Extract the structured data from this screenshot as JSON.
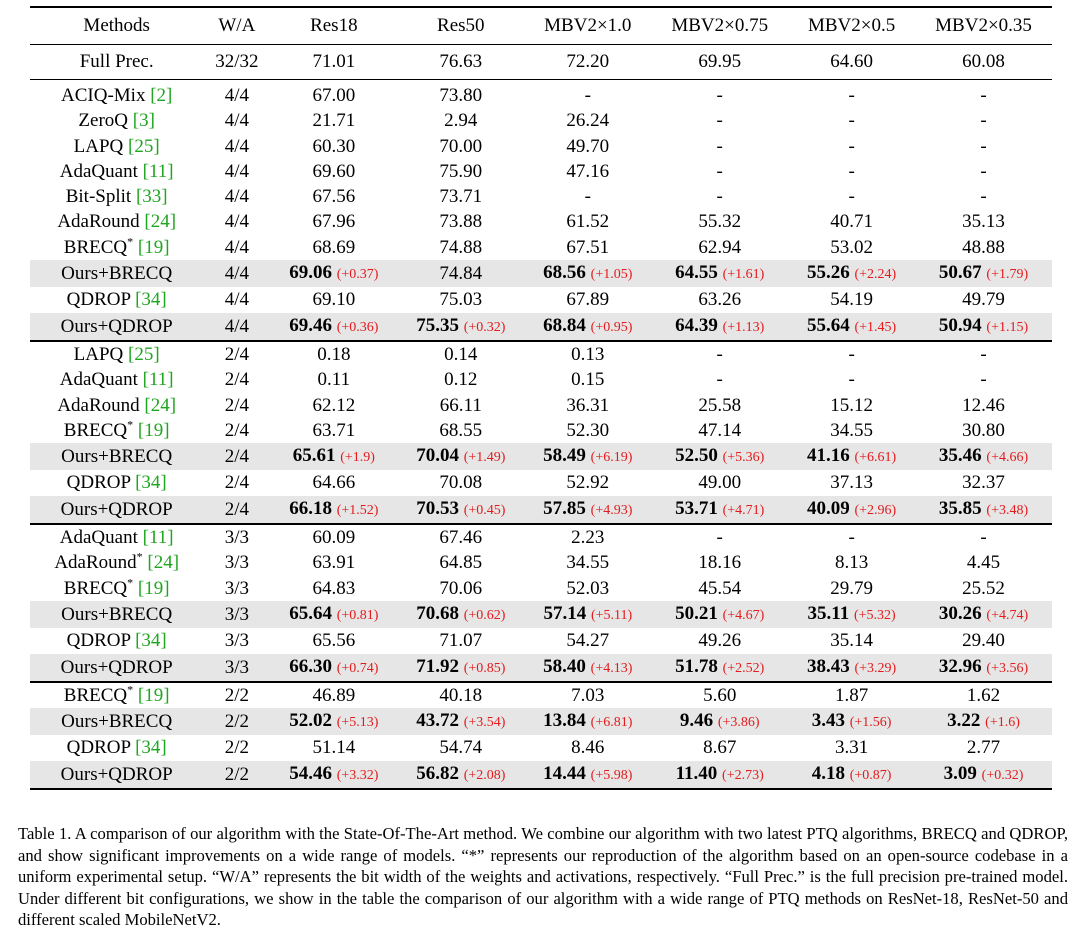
{
  "table": {
    "headers": [
      "Methods",
      "W/A",
      "Res18",
      "Res50",
      "MBV2×1.0",
      "MBV2×0.75",
      "MBV2×0.5",
      "MBV2×0.35"
    ],
    "full_prec": [
      "Full Prec.",
      "32/32",
      "71.01",
      "76.63",
      "72.20",
      "69.95",
      "64.60",
      "60.08"
    ],
    "sections": [
      {
        "rows": [
          {
            "method": "ACIQ-Mix",
            "sup": "",
            "ref": "[2]",
            "wa": "4/4",
            "hl": false,
            "cells": [
              {
                "v": "67.00"
              },
              {
                "v": "73.80"
              },
              {
                "v": "-"
              },
              {
                "v": "-"
              },
              {
                "v": "-"
              },
              {
                "v": "-"
              }
            ]
          },
          {
            "method": "ZeroQ",
            "sup": "",
            "ref": "[3]",
            "wa": "4/4",
            "hl": false,
            "cells": [
              {
                "v": "21.71"
              },
              {
                "v": "2.94"
              },
              {
                "v": "26.24"
              },
              {
                "v": "-"
              },
              {
                "v": "-"
              },
              {
                "v": "-"
              }
            ]
          },
          {
            "method": "LAPQ",
            "sup": "",
            "ref": "[25]",
            "wa": "4/4",
            "hl": false,
            "cells": [
              {
                "v": "60.30"
              },
              {
                "v": "70.00"
              },
              {
                "v": "49.70"
              },
              {
                "v": "-"
              },
              {
                "v": "-"
              },
              {
                "v": "-"
              }
            ]
          },
          {
            "method": "AdaQuant",
            "sup": "",
            "ref": "[11]",
            "wa": "4/4",
            "hl": false,
            "cells": [
              {
                "v": "69.60"
              },
              {
                "v": "75.90"
              },
              {
                "v": "47.16"
              },
              {
                "v": "-"
              },
              {
                "v": "-"
              },
              {
                "v": "-"
              }
            ]
          },
          {
            "method": "Bit-Split",
            "sup": "",
            "ref": "[33]",
            "wa": "4/4",
            "hl": false,
            "cells": [
              {
                "v": "67.56"
              },
              {
                "v": "73.71"
              },
              {
                "v": "-"
              },
              {
                "v": "-"
              },
              {
                "v": "-"
              },
              {
                "v": "-"
              }
            ]
          },
          {
            "method": "AdaRound",
            "sup": "",
            "ref": "[24]",
            "wa": "4/4",
            "hl": false,
            "cells": [
              {
                "v": "67.96"
              },
              {
                "v": "73.88"
              },
              {
                "v": "61.52"
              },
              {
                "v": "55.32"
              },
              {
                "v": "40.71"
              },
              {
                "v": "35.13"
              }
            ]
          },
          {
            "method": "BRECQ",
            "sup": "*",
            "ref": "[19]",
            "wa": "4/4",
            "hl": false,
            "cells": [
              {
                "v": "68.69"
              },
              {
                "v": "74.88"
              },
              {
                "v": "67.51"
              },
              {
                "v": "62.94"
              },
              {
                "v": "53.02"
              },
              {
                "v": "48.88"
              }
            ]
          },
          {
            "method": "Ours+BRECQ",
            "sup": "",
            "ref": "",
            "wa": "4/4",
            "hl": true,
            "cells": [
              {
                "v": "69.06",
                "b": true,
                "d": "(+0.37)"
              },
              {
                "v": "74.84"
              },
              {
                "v": "68.56",
                "b": true,
                "d": "(+1.05)"
              },
              {
                "v": "64.55",
                "b": true,
                "d": "(+1.61)"
              },
              {
                "v": "55.26",
                "b": true,
                "d": "(+2.24)"
              },
              {
                "v": "50.67",
                "b": true,
                "d": "(+1.79)"
              }
            ]
          },
          {
            "method": "QDROP",
            "sup": "",
            "ref": "[34]",
            "wa": "4/4",
            "hl": false,
            "cells": [
              {
                "v": "69.10"
              },
              {
                "v": "75.03"
              },
              {
                "v": "67.89"
              },
              {
                "v": "63.26"
              },
              {
                "v": "54.19"
              },
              {
                "v": "49.79"
              }
            ]
          },
          {
            "method": "Ours+QDROP",
            "sup": "",
            "ref": "",
            "wa": "4/4",
            "hl": true,
            "cells": [
              {
                "v": "69.46",
                "b": true,
                "d": "(+0.36)"
              },
              {
                "v": "75.35",
                "b": true,
                "d": "(+0.32)"
              },
              {
                "v": "68.84",
                "b": true,
                "d": "(+0.95)"
              },
              {
                "v": "64.39",
                "b": true,
                "d": "(+1.13)"
              },
              {
                "v": "55.64",
                "b": true,
                "d": "(+1.45)"
              },
              {
                "v": "50.94",
                "b": true,
                "d": "(+1.15)"
              }
            ]
          }
        ]
      },
      {
        "rows": [
          {
            "method": "LAPQ",
            "sup": "",
            "ref": "[25]",
            "wa": "2/4",
            "hl": false,
            "cells": [
              {
                "v": "0.18"
              },
              {
                "v": "0.14"
              },
              {
                "v": "0.13"
              },
              {
                "v": "-"
              },
              {
                "v": "-"
              },
              {
                "v": "-"
              }
            ]
          },
          {
            "method": "AdaQuant",
            "sup": "",
            "ref": "[11]",
            "wa": "2/4",
            "hl": false,
            "cells": [
              {
                "v": "0.11"
              },
              {
                "v": "0.12"
              },
              {
                "v": "0.15"
              },
              {
                "v": "-"
              },
              {
                "v": "-"
              },
              {
                "v": "-"
              }
            ]
          },
          {
            "method": "AdaRound",
            "sup": "",
            "ref": "[24]",
            "wa": "2/4",
            "hl": false,
            "cells": [
              {
                "v": "62.12"
              },
              {
                "v": "66.11"
              },
              {
                "v": "36.31"
              },
              {
                "v": "25.58"
              },
              {
                "v": "15.12"
              },
              {
                "v": "12.46"
              }
            ]
          },
          {
            "method": "BRECQ",
            "sup": "*",
            "ref": "[19]",
            "wa": "2/4",
            "hl": false,
            "cells": [
              {
                "v": "63.71"
              },
              {
                "v": "68.55"
              },
              {
                "v": "52.30"
              },
              {
                "v": "47.14"
              },
              {
                "v": "34.55"
              },
              {
                "v": "30.80"
              }
            ]
          },
          {
            "method": "Ours+BRECQ",
            "sup": "",
            "ref": "",
            "wa": "2/4",
            "hl": true,
            "cells": [
              {
                "v": "65.61",
                "b": true,
                "d": "(+1.9)"
              },
              {
                "v": "70.04",
                "b": true,
                "d": "(+1.49)"
              },
              {
                "v": "58.49",
                "b": true,
                "d": "(+6.19)"
              },
              {
                "v": "52.50",
                "b": true,
                "d": "(+5.36)"
              },
              {
                "v": "41.16",
                "b": true,
                "d": "(+6.61)"
              },
              {
                "v": "35.46",
                "b": true,
                "d": "(+4.66)"
              }
            ]
          },
          {
            "method": "QDROP",
            "sup": "",
            "ref": "[34]",
            "wa": "2/4",
            "hl": false,
            "cells": [
              {
                "v": "64.66"
              },
              {
                "v": "70.08"
              },
              {
                "v": "52.92"
              },
              {
                "v": "49.00"
              },
              {
                "v": "37.13"
              },
              {
                "v": "32.37"
              }
            ]
          },
          {
            "method": "Ours+QDROP",
            "sup": "",
            "ref": "",
            "wa": "2/4",
            "hl": true,
            "cells": [
              {
                "v": "66.18",
                "b": true,
                "d": "(+1.52)"
              },
              {
                "v": "70.53",
                "b": true,
                "d": "(+0.45)"
              },
              {
                "v": "57.85",
                "b": true,
                "d": "(+4.93)"
              },
              {
                "v": "53.71",
                "b": true,
                "d": "(+4.71)"
              },
              {
                "v": "40.09",
                "b": true,
                "d": "(+2.96)"
              },
              {
                "v": "35.85",
                "b": true,
                "d": "(+3.48)"
              }
            ]
          }
        ]
      },
      {
        "rows": [
          {
            "method": "AdaQuant",
            "sup": "",
            "ref": "[11]",
            "wa": "3/3",
            "hl": false,
            "cells": [
              {
                "v": "60.09"
              },
              {
                "v": "67.46"
              },
              {
                "v": "2.23"
              },
              {
                "v": "-"
              },
              {
                "v": "-"
              },
              {
                "v": "-"
              }
            ]
          },
          {
            "method": "AdaRound",
            "sup": "*",
            "ref": "[24]",
            "wa": "3/3",
            "hl": false,
            "cells": [
              {
                "v": "63.91"
              },
              {
                "v": "64.85"
              },
              {
                "v": "34.55"
              },
              {
                "v": "18.16"
              },
              {
                "v": "8.13"
              },
              {
                "v": "4.45"
              }
            ]
          },
          {
            "method": "BRECQ",
            "sup": "*",
            "ref": "[19]",
            "wa": "3/3",
            "hl": false,
            "cells": [
              {
                "v": "64.83"
              },
              {
                "v": "70.06"
              },
              {
                "v": "52.03"
              },
              {
                "v": "45.54"
              },
              {
                "v": "29.79"
              },
              {
                "v": "25.52"
              }
            ]
          },
          {
            "method": "Ours+BRECQ",
            "sup": "",
            "ref": "",
            "wa": "3/3",
            "hl": true,
            "cells": [
              {
                "v": "65.64",
                "b": true,
                "d": "(+0.81)"
              },
              {
                "v": "70.68",
                "b": true,
                "d": "(+0.62)"
              },
              {
                "v": "57.14",
                "b": true,
                "d": "(+5.11)"
              },
              {
                "v": "50.21",
                "b": true,
                "d": "(+4.67)"
              },
              {
                "v": "35.11",
                "b": true,
                "d": "(+5.32)"
              },
              {
                "v": "30.26",
                "b": true,
                "d": "(+4.74)"
              }
            ]
          },
          {
            "method": "QDROP",
            "sup": "",
            "ref": "[34]",
            "wa": "3/3",
            "hl": false,
            "cells": [
              {
                "v": "65.56"
              },
              {
                "v": "71.07"
              },
              {
                "v": "54.27"
              },
              {
                "v": "49.26"
              },
              {
                "v": "35.14"
              },
              {
                "v": "29.40"
              }
            ]
          },
          {
            "method": "Ours+QDROP",
            "sup": "",
            "ref": "",
            "wa": "3/3",
            "hl": true,
            "cells": [
              {
                "v": "66.30",
                "b": true,
                "d": "(+0.74)"
              },
              {
                "v": "71.92",
                "b": true,
                "d": "(+0.85)"
              },
              {
                "v": "58.40",
                "b": true,
                "d": "(+4.13)"
              },
              {
                "v": "51.78",
                "b": true,
                "d": "(+2.52)"
              },
              {
                "v": "38.43",
                "b": true,
                "d": "(+3.29)"
              },
              {
                "v": "32.96",
                "b": true,
                "d": "(+3.56)"
              }
            ]
          }
        ]
      },
      {
        "rows": [
          {
            "method": "BRECQ",
            "sup": "*",
            "ref": "[19]",
            "wa": "2/2",
            "hl": false,
            "cells": [
              {
                "v": "46.89"
              },
              {
                "v": "40.18"
              },
              {
                "v": "7.03"
              },
              {
                "v": "5.60"
              },
              {
                "v": "1.87"
              },
              {
                "v": "1.62"
              }
            ]
          },
          {
            "method": "Ours+BRECQ",
            "sup": "",
            "ref": "",
            "wa": "2/2",
            "hl": true,
            "cells": [
              {
                "v": "52.02",
                "b": true,
                "d": "(+5.13)"
              },
              {
                "v": "43.72",
                "b": true,
                "d": "(+3.54)"
              },
              {
                "v": "13.84",
                "b": true,
                "d": "(+6.81)"
              },
              {
                "v": "9.46",
                "b": true,
                "d": "(+3.86)"
              },
              {
                "v": "3.43",
                "b": true,
                "d": "(+1.56)"
              },
              {
                "v": "3.22",
                "b": true,
                "d": "(+1.6)"
              }
            ]
          },
          {
            "method": "QDROP",
            "sup": "",
            "ref": "[34]",
            "wa": "2/2",
            "hl": false,
            "cells": [
              {
                "v": "51.14"
              },
              {
                "v": "54.74"
              },
              {
                "v": "8.46"
              },
              {
                "v": "8.67"
              },
              {
                "v": "3.31"
              },
              {
                "v": "2.77"
              }
            ]
          },
          {
            "method": "Ours+QDROP",
            "sup": "",
            "ref": "",
            "wa": "2/2",
            "hl": true,
            "cells": [
              {
                "v": "54.46",
                "b": true,
                "d": "(+3.32)"
              },
              {
                "v": "56.82",
                "b": true,
                "d": "(+2.08)"
              },
              {
                "v": "14.44",
                "b": true,
                "d": "(+5.98)"
              },
              {
                "v": "11.40",
                "b": true,
                "d": "(+2.73)"
              },
              {
                "v": "4.18",
                "b": true,
                "d": "(+0.87)"
              },
              {
                "v": "3.09",
                "b": true,
                "d": "(+0.32)"
              }
            ]
          }
        ]
      }
    ]
  },
  "caption": "Table 1. A comparison of our algorithm with the State-Of-The-Art method. We combine our algorithm with two latest PTQ algorithms, BRECQ and QDROP, and show significant improvements on a wide range of models. “*” represents our reproduction of the algorithm based on an open-source codebase in a uniform experimental setup. “W/A” represents the bit width of the weights and activations, respectively. “Full Prec.” is the full precision pre-trained model. Under different bit configurations, we show in the table the comparison of our algorithm with a wide range of PTQ methods on ResNet-18, ResNet-50 and different scaled MobileNetV2.",
  "colors": {
    "ref": "#1fa51f",
    "delta": "#e41a1c",
    "highlight": "#e6e6e6"
  }
}
